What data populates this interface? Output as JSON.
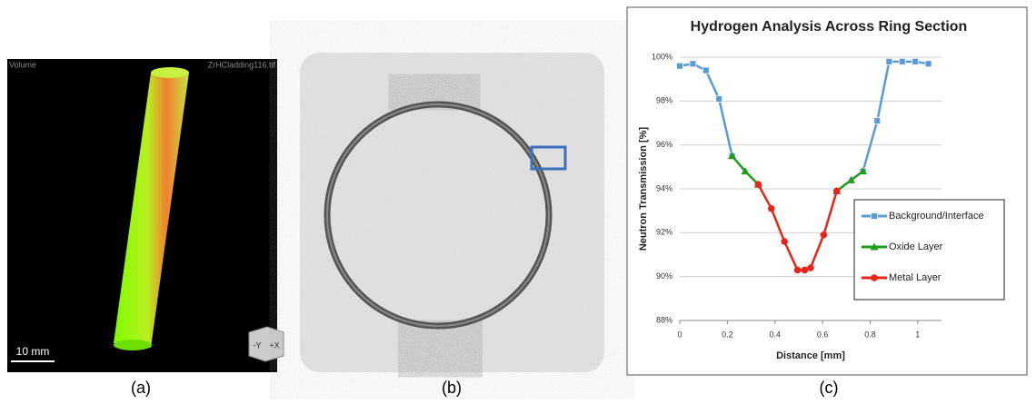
{
  "panels": {
    "a": {
      "caption": "(a)",
      "left_label": "Volume",
      "right_label": "ZrHCladding116.tif",
      "scale_bar": "10 mm",
      "cube_left": "-Y",
      "cube_right": "+X"
    },
    "b": {
      "caption": "(b)"
    },
    "c": {
      "caption": "(c)"
    }
  },
  "chart_data": {
    "type": "line",
    "title": "Hydrogen Analysis Across Ring Section",
    "x_label": "Distance [mm]",
    "y_label": "Neutron Transmission [%]",
    "x": [
      0,
      0.055,
      0.11,
      0.165,
      0.22,
      0.275,
      0.33,
      0.385,
      0.44,
      0.495,
      0.525,
      0.55,
      0.605,
      0.66,
      0.72,
      0.77,
      0.83,
      0.88,
      0.935,
      0.99,
      1.045
    ],
    "series": [
      {
        "name": "Background/Interface",
        "color": "#5b9bd5",
        "marker": "square",
        "values": [
          99.6,
          99.7,
          99.4,
          98.1,
          95.5,
          null,
          null,
          null,
          null,
          null,
          null,
          null,
          null,
          null,
          null,
          94.8,
          97.1,
          99.8,
          99.8,
          99.8,
          99.7
        ]
      },
      {
        "name": "Oxide Layer",
        "color": "#1e9c1e",
        "marker": "triangle",
        "values": [
          null,
          null,
          null,
          null,
          95.5,
          94.8,
          94.2,
          null,
          null,
          null,
          null,
          null,
          null,
          93.9,
          94.4,
          94.8,
          null,
          null,
          null,
          null,
          null
        ]
      },
      {
        "name": "Metal Layer",
        "color": "#e8241b",
        "marker": "circle",
        "values": [
          null,
          null,
          null,
          null,
          null,
          null,
          94.2,
          93.1,
          91.6,
          90.3,
          90.3,
          90.4,
          91.9,
          93.9,
          null,
          null,
          null,
          null,
          null,
          null,
          null
        ]
      }
    ],
    "xlim": [
      0,
      1.1
    ],
    "xticks": [
      0,
      0.2,
      0.4,
      0.6,
      0.8,
      1
    ],
    "ylim": [
      88,
      100
    ],
    "yticks": [
      {
        "value": 88,
        "label": "88%"
      },
      {
        "value": 90,
        "label": "90%"
      },
      {
        "value": 92,
        "label": "92%"
      },
      {
        "value": 94,
        "label": "94%"
      },
      {
        "value": 96,
        "label": "96%"
      },
      {
        "value": 98,
        "label": "98%"
      },
      {
        "value": 100,
        "label": "100%"
      }
    ],
    "grid": true,
    "legend": "right"
  }
}
